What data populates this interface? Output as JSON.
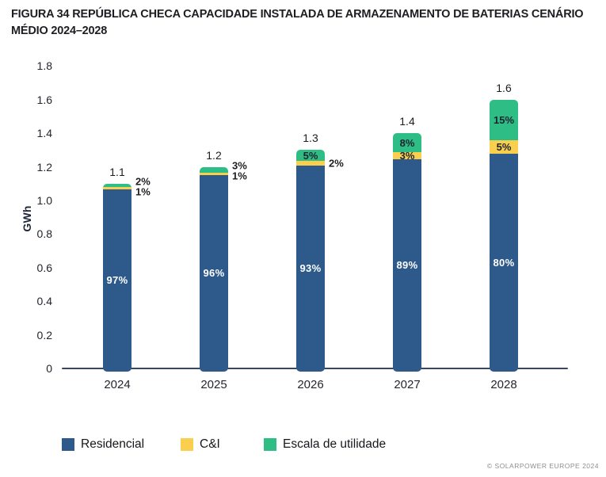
{
  "header": {
    "title_line1": "FIGURA 34 REPÚBLICA CHECA CAPACIDADE INSTALADA DE ARMAZENAMENTO DE BATERIAS CENÁRIO",
    "title_line2": "MÉDIO 2024–2028"
  },
  "footer": {
    "credit": "© SOLARPOWER EUROPE 2024"
  },
  "colors": {
    "residential": "#2E5A8B",
    "ci": "#F9CF4D",
    "utility": "#2EBD84",
    "axis": "#3A4660",
    "label_dark": "#1C2430",
    "label_on_blue": "#FFFFFF"
  },
  "chart_data": {
    "type": "bar",
    "stacked": true,
    "title": "FIGURA 34 REPÚBLICA CHECA CAPACIDADE INSTALADA DE ARMAZENAMENTO DE BATERIAS CENÁRIO MÉDIO 2024–2028",
    "ylabel": "GWh",
    "ylim": [
      0,
      1.8
    ],
    "yticks": [
      "0",
      "0.2",
      "0.4",
      "0.6",
      "0.8",
      "1.0",
      "1.2",
      "1.4",
      "1.6",
      "1.8"
    ],
    "grid": false,
    "legend_position": "bottom",
    "categories": [
      "2024",
      "2025",
      "2026",
      "2027",
      "2028"
    ],
    "totals": [
      1.1,
      1.2,
      1.3,
      1.4,
      1.6
    ],
    "total_labels": [
      "1.1",
      "1.2",
      "1.3",
      "1.4",
      "1.6"
    ],
    "series": [
      {
        "name": "Residencial",
        "color_key": "residential",
        "pct": [
          97,
          96,
          93,
          89,
          80
        ]
      },
      {
        "name": "C&I",
        "color_key": "ci",
        "pct": [
          1,
          1,
          2,
          3,
          5
        ]
      },
      {
        "name": "Escala de utilidade",
        "color_key": "utility",
        "pct": [
          2,
          3,
          5,
          8,
          15
        ]
      }
    ],
    "labels": {
      "inside_blue": [
        "97%",
        "96%",
        "93%",
        "89%",
        "80%"
      ],
      "ci": [
        {
          "text": "1%",
          "pos": "right",
          "dy": 10
        },
        {
          "text": "1%",
          "pos": "right",
          "dy": 11
        },
        {
          "text": "2%",
          "pos": "right",
          "dy": 17
        },
        {
          "text": "3%",
          "pos": "inside"
        },
        {
          "text": "5%",
          "pos": "inside"
        }
      ],
      "utility": [
        {
          "text": "2%",
          "pos": "right",
          "dy": -3
        },
        {
          "text": "3%",
          "pos": "right",
          "dy": -2
        },
        {
          "text": "5%",
          "pos": "inside"
        },
        {
          "text": "8%",
          "pos": "inside"
        },
        {
          "text": "15%",
          "pos": "inside"
        }
      ]
    },
    "legend": [
      {
        "label": "Residencial",
        "color_key": "residential"
      },
      {
        "label": "C&I",
        "color_key": "ci"
      },
      {
        "label": "Escala de utilidade",
        "color_key": "utility"
      }
    ]
  }
}
